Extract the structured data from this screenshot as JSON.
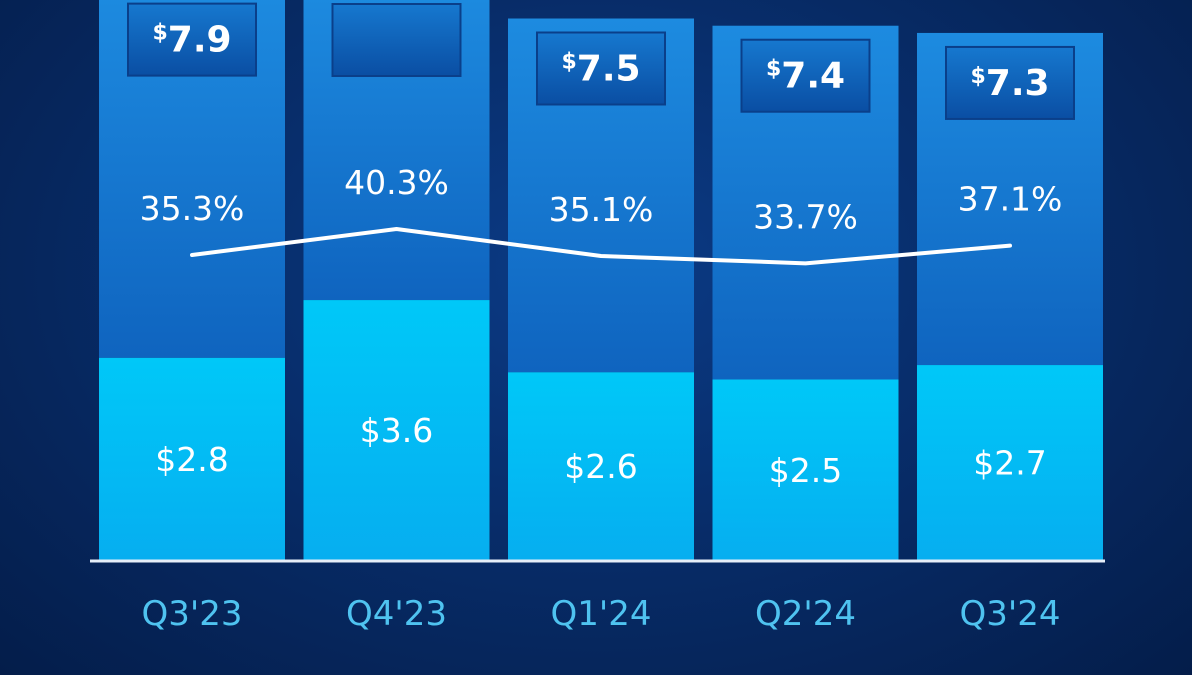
{
  "chart_data": {
    "type": "bar",
    "stacked": true,
    "categories": [
      "Q3'23",
      "Q4'23",
      "Q1'24",
      "Q2'24",
      "Q3'24"
    ],
    "series": [
      {
        "values": [
          2.8,
          3.6,
          2.6,
          2.5,
          2.7
        ],
        "labels": [
          "$2.8",
          "$3.6",
          "$2.6",
          "$2.5",
          "$2.7"
        ],
        "color": "#00c2f5"
      },
      {
        "values": [
          5.1,
          null,
          4.9,
          4.9,
          4.6
        ],
        "color": "#1a86d8"
      }
    ],
    "totals": [
      7.9,
      null,
      7.5,
      7.4,
      7.3
    ],
    "total_labels": [
      {
        "prefix": "$",
        "value": "7.9"
      },
      {
        "prefix": "",
        "value": ""
      },
      {
        "prefix": "$",
        "value": "7.5"
      },
      {
        "prefix": "$",
        "value": "7.4"
      },
      {
        "prefix": "$",
        "value": "7.3"
      }
    ],
    "line": {
      "values": [
        35.3,
        40.3,
        35.1,
        33.7,
        37.1
      ],
      "labels": [
        "35.3%",
        "40.3%",
        "35.1%",
        "33.7%",
        "37.1%"
      ],
      "color": "#ffffff"
    },
    "axis_color": "#e6eef8",
    "title": "",
    "xlabel": "",
    "ylabel": ""
  }
}
